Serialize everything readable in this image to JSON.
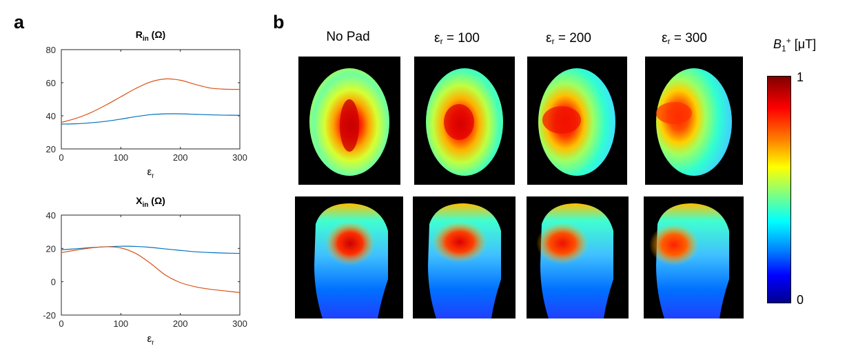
{
  "panel_labels": {
    "a": "a",
    "b": "b"
  },
  "chart_data": [
    {
      "type": "line",
      "title_main": "R",
      "title_sub": "in",
      "title_unit": "(Ω)",
      "xlabel_main": "ε",
      "xlabel_sub": "r",
      "xlim": [
        0,
        300
      ],
      "ylim": [
        20,
        80
      ],
      "xticks": [
        0,
        100,
        200,
        300
      ],
      "yticks": [
        20,
        40,
        60,
        80
      ],
      "series": [
        {
          "name": "blue",
          "color": "#0072BD",
          "x": [
            0,
            25,
            50,
            75,
            100,
            125,
            150,
            175,
            200,
            225,
            250,
            275,
            300
          ],
          "values": [
            35,
            35.2,
            35.8,
            36.7,
            38,
            39.5,
            40.7,
            41.2,
            41.2,
            40.9,
            40.6,
            40.4,
            40.3
          ]
        },
        {
          "name": "orange",
          "color": "#D95319",
          "x": [
            0,
            25,
            50,
            75,
            100,
            125,
            150,
            175,
            200,
            225,
            250,
            275,
            300
          ],
          "values": [
            36,
            38.5,
            42,
            46.5,
            51.5,
            56.5,
            60.5,
            62.3,
            61.5,
            59,
            56.8,
            56.1,
            56
          ]
        }
      ]
    },
    {
      "type": "line",
      "title_main": "X",
      "title_sub": "in",
      "title_unit": "(Ω)",
      "xlabel_main": "ε",
      "xlabel_sub": "r",
      "xlim": [
        0,
        300
      ],
      "ylim": [
        -20,
        40
      ],
      "xticks": [
        0,
        100,
        200,
        300
      ],
      "yticks": [
        -20,
        0,
        20,
        40
      ],
      "series": [
        {
          "name": "blue",
          "color": "#0072BD",
          "x": [
            0,
            25,
            50,
            75,
            100,
            125,
            150,
            175,
            200,
            225,
            250,
            275,
            300
          ],
          "values": [
            19.2,
            19.8,
            20.5,
            21,
            21.3,
            21.2,
            20.6,
            19.7,
            18.8,
            18,
            17.5,
            17.2,
            17
          ]
        },
        {
          "name": "orange",
          "color": "#D95319",
          "x": [
            0,
            25,
            50,
            75,
            100,
            125,
            150,
            175,
            200,
            225,
            250,
            275,
            300
          ],
          "values": [
            17.5,
            19,
            20.3,
            21,
            20.3,
            17,
            11,
            4,
            -0.5,
            -3,
            -4.5,
            -5.5,
            -6.5
          ]
        }
      ]
    }
  ],
  "columns": [
    {
      "label_main": "No Pad",
      "label_sub": "",
      "label_tail": ""
    },
    {
      "label_main": "ε",
      "label_sub": "r",
      "label_tail": " = 100"
    },
    {
      "label_main": "ε",
      "label_sub": "r",
      "label_tail": " = 200"
    },
    {
      "label_main": "ε",
      "label_sub": "r",
      "label_tail": " = 300"
    }
  ],
  "colorbar": {
    "title_var": "B",
    "title_sub": "1",
    "title_sup": "+",
    "title_unit": " [μT]",
    "max_label": "1",
    "min_label": "0"
  }
}
